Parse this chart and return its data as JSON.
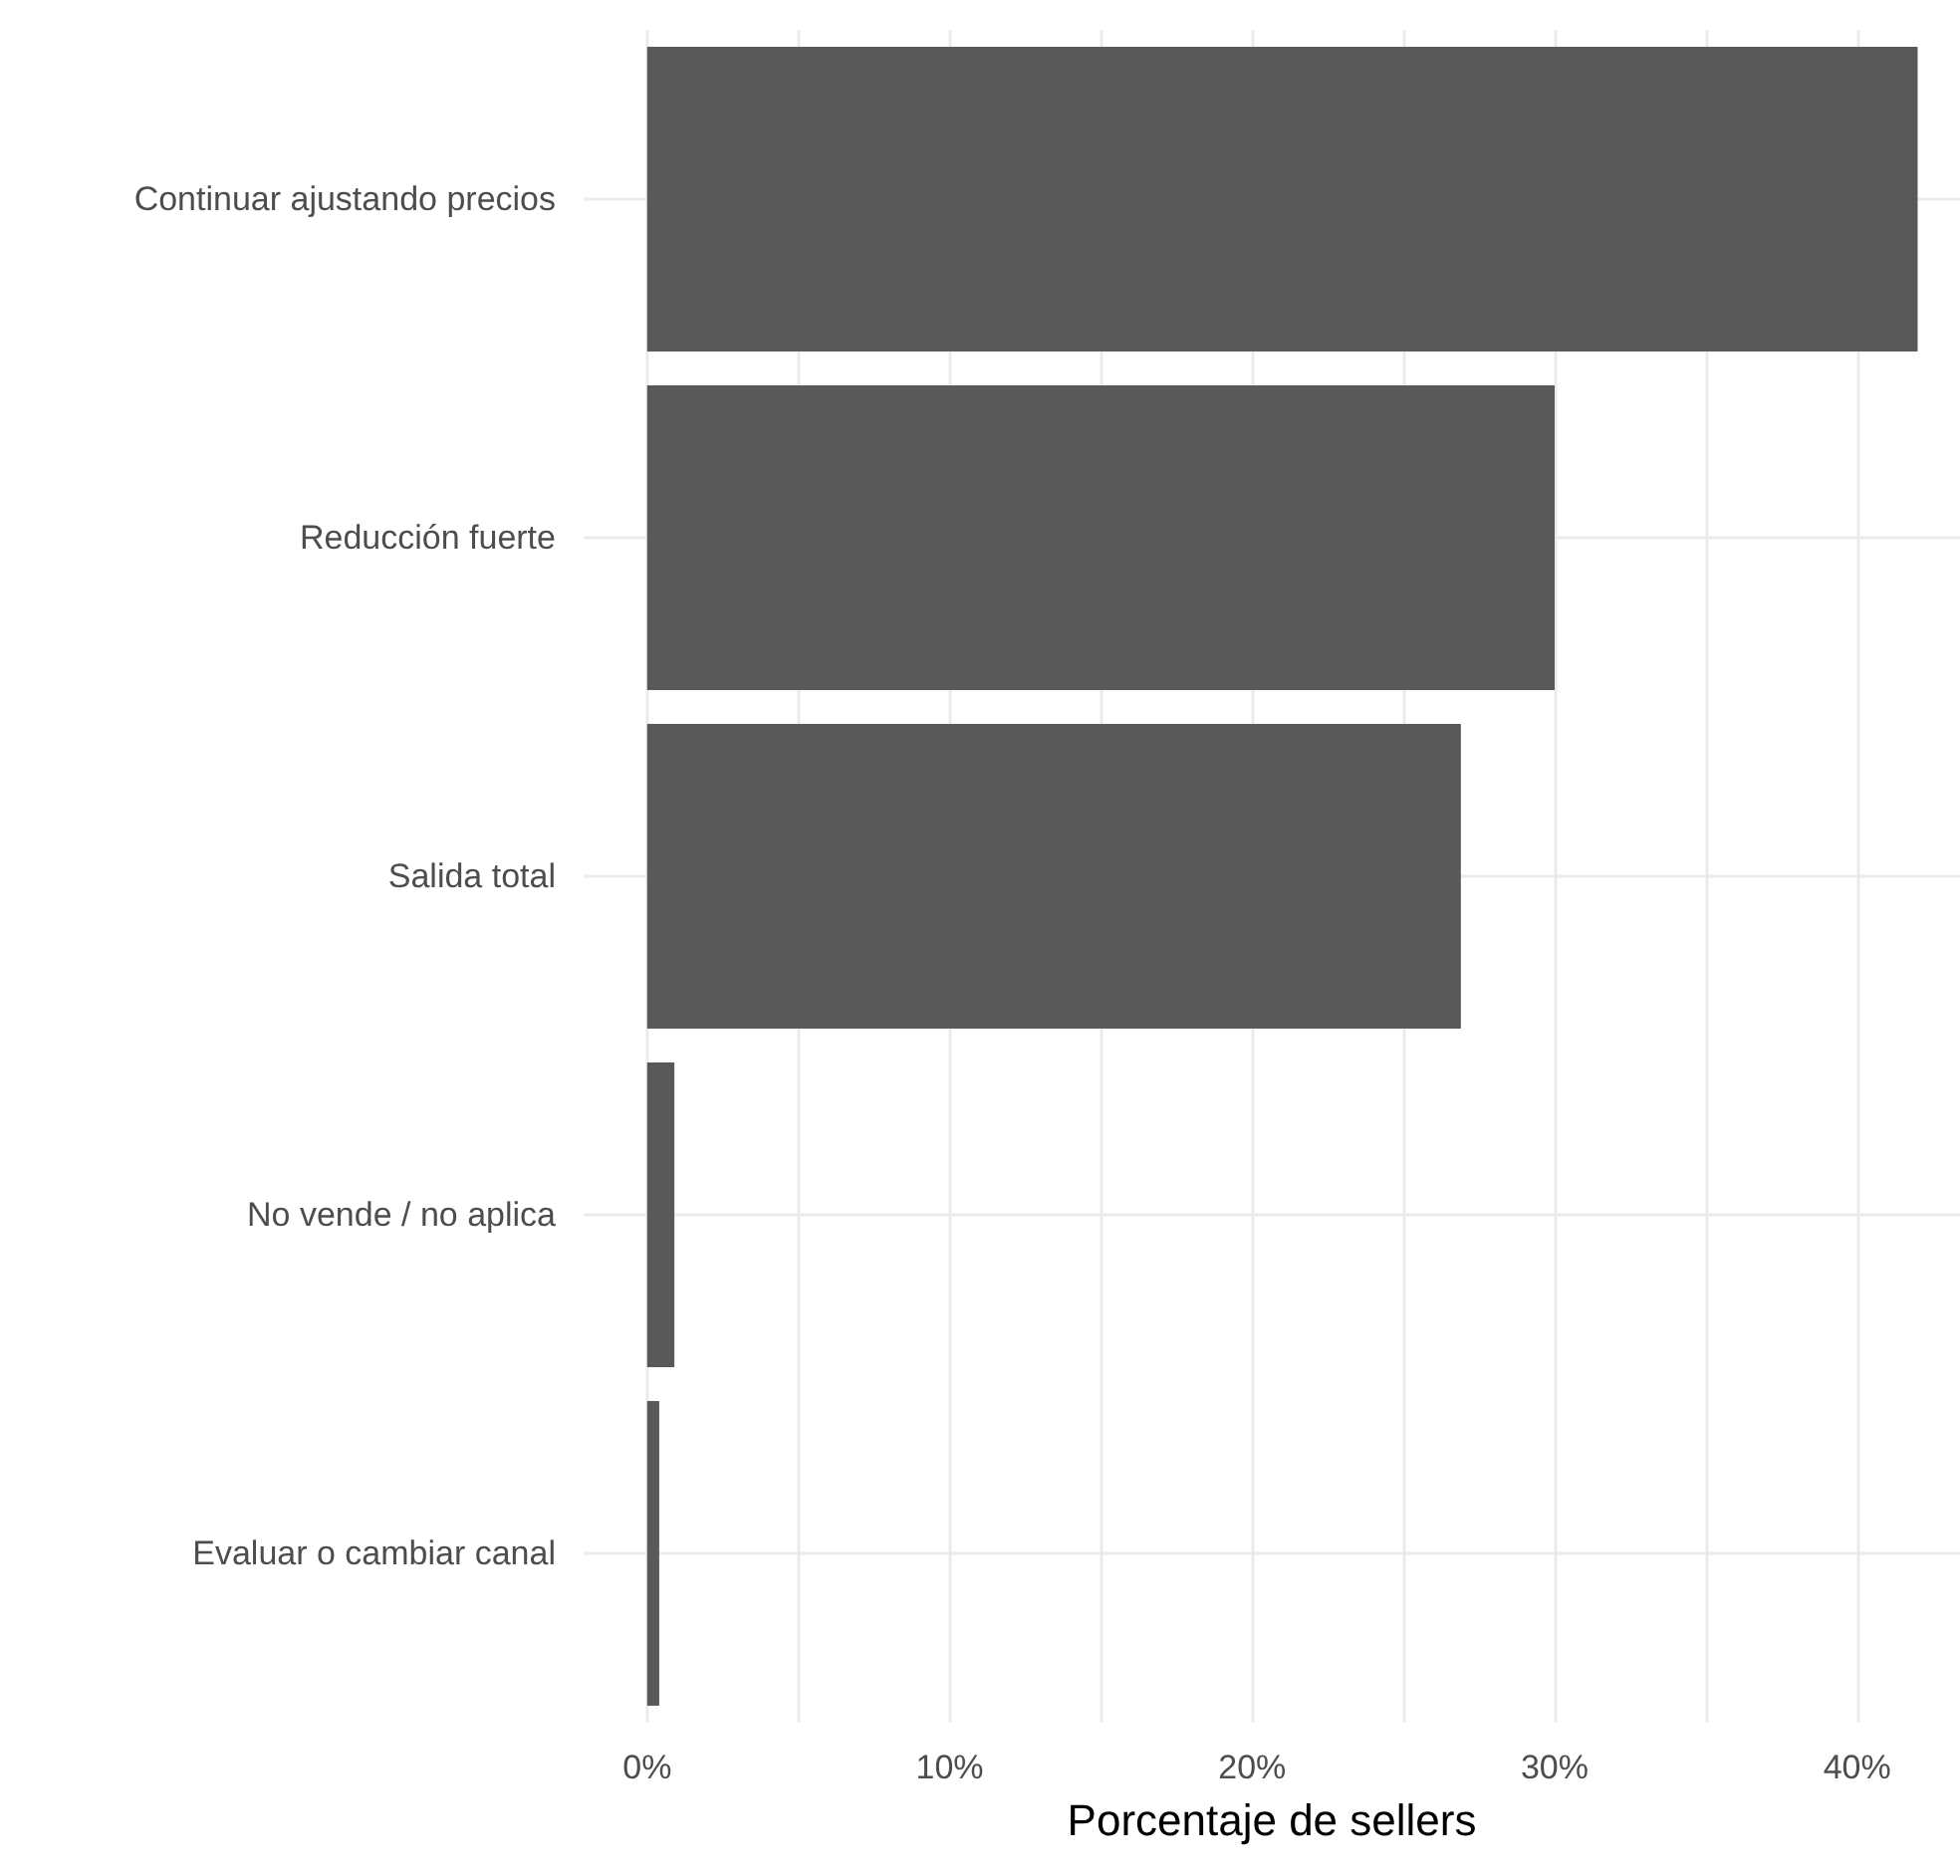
{
  "chart_data": {
    "type": "bar",
    "orientation": "horizontal",
    "xlabel": "Porcentaje de sellers",
    "categories": [
      "Continuar ajustando precios",
      "Reducción fuerte",
      "Salida total",
      "No vende / no aplica",
      "Evaluar o cambiar canal"
    ],
    "values": [
      42.0,
      30.0,
      26.9,
      0.9,
      0.4
    ],
    "color": "#595959",
    "xlim": [
      -2.1,
      43.4
    ],
    "xticks": [
      {
        "value": 0,
        "label": "0%"
      },
      {
        "value": 5,
        "label": null
      },
      {
        "value": 10,
        "label": "10%"
      },
      {
        "value": 15,
        "label": null
      },
      {
        "value": 20,
        "label": "20%"
      },
      {
        "value": 25,
        "label": null
      },
      {
        "value": 30,
        "label": "30%"
      },
      {
        "value": 35,
        "label": null
      },
      {
        "value": 40,
        "label": "40%"
      }
    ],
    "grid": true
  }
}
